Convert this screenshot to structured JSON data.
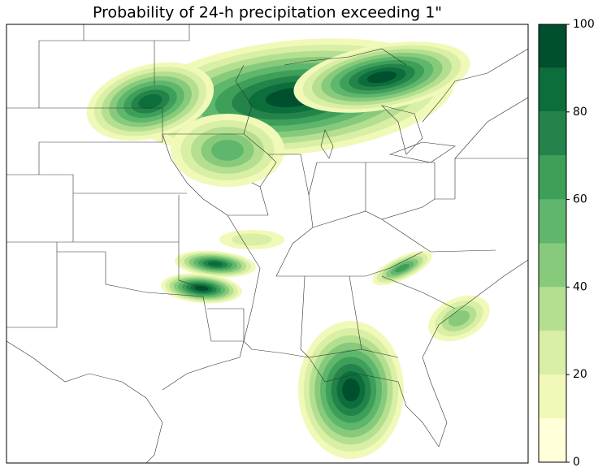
{
  "chart_data": {
    "type": "filled-contour-map",
    "title": "Probability of 24-h precipitation exceeding 1\"",
    "colorbar": {
      "lim": [
        0,
        100
      ],
      "levels": [
        0,
        10,
        20,
        30,
        40,
        50,
        60,
        70,
        80,
        90,
        100
      ],
      "colors": [
        "#ffffd9",
        "#f0f9b8",
        "#d8efa5",
        "#b4df91",
        "#88ca7b",
        "#5fb66d",
        "#3d9f58",
        "#24834a",
        "#0c6e3b",
        "#00502e"
      ],
      "ticks": [
        0,
        20,
        40,
        60,
        80,
        100
      ]
    }
  }
}
